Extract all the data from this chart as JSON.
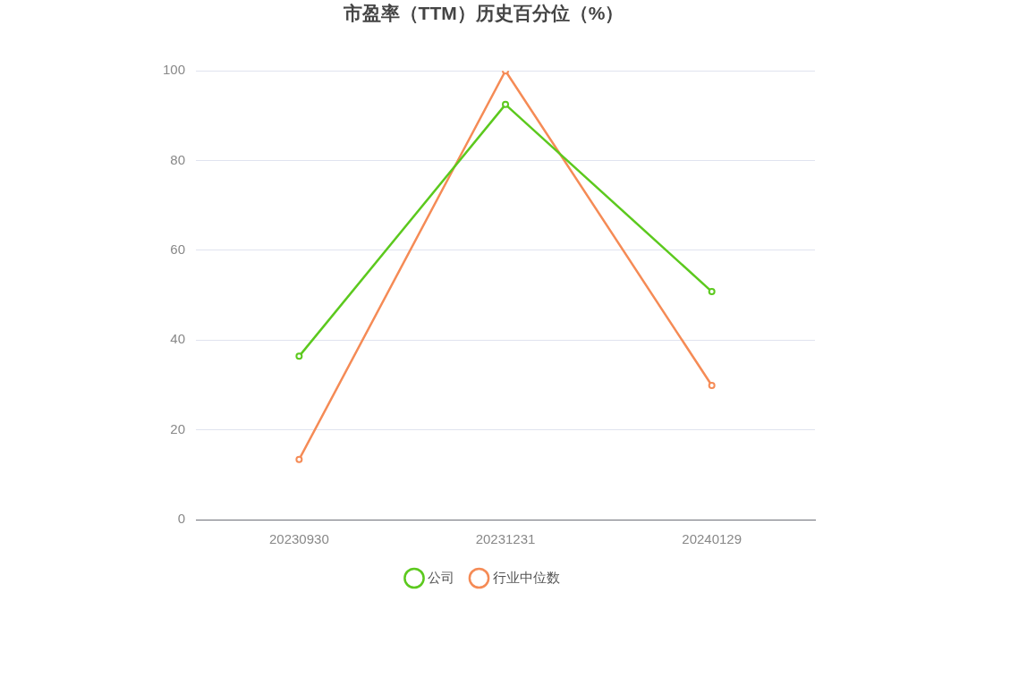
{
  "chart_data": {
    "type": "line",
    "title": "市盈率（TTM）历史百分位（%）",
    "categories": [
      "20230930",
      "20231231",
      "20240129"
    ],
    "series": [
      {
        "name": "公司",
        "color": "#5cc91e",
        "values": [
          36.4,
          92.5,
          50.8
        ]
      },
      {
        "name": "行业中位数",
        "color": "#f58b56",
        "values": [
          13.4,
          100,
          29.9
        ]
      }
    ],
    "ylim": [
      0,
      100
    ],
    "yticks": [
      0,
      20,
      40,
      60,
      80,
      100
    ],
    "grid": "y",
    "legend": "bottom",
    "marker": "circle",
    "line_style": "solid"
  }
}
